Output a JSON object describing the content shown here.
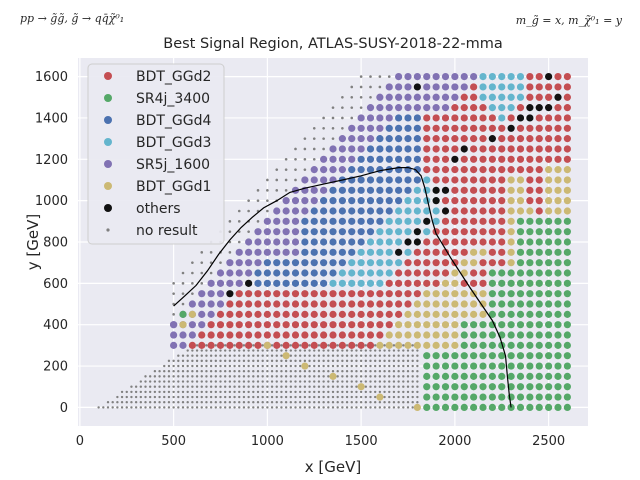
{
  "corner_left": "pp → g̃g̃, g̃ → qq̄χ̃⁰₁",
  "corner_right": "m_g̃ = x, m_χ̃⁰₁ = y",
  "chart_data": {
    "type": "scatter",
    "title": "Best Signal Region, ATLAS-SUSY-2018-22-mma",
    "xlabel": "x [GeV]",
    "ylabel": "y [GeV]",
    "xlim": [
      -10,
      2710
    ],
    "ylim": [
      -90,
      1690
    ],
    "xticks": [
      0,
      500,
      1000,
      1500,
      2000,
      2500
    ],
    "yticks": [
      0,
      200,
      400,
      600,
      800,
      1000,
      1200,
      1400,
      1600
    ],
    "grid": true,
    "legend_position": "top-left",
    "grid_rule": {
      "x_range": [
        500,
        2600
      ],
      "x_step": 50,
      "y_range": [
        0,
        1600
      ],
      "y_step": 50,
      "allowed_region": "y <= x - 100",
      "no_result_region": "x from 100 to 1800 with y from 0 to 300 (spacing 25)"
    },
    "exclusion_contour": [
      [
        500,
        490
      ],
      [
        560,
        540
      ],
      [
        620,
        590
      ],
      [
        680,
        660
      ],
      [
        740,
        740
      ],
      [
        800,
        810
      ],
      [
        860,
        870
      ],
      [
        920,
        920
      ],
      [
        980,
        965
      ],
      [
        1050,
        1000
      ],
      [
        1120,
        1040
      ],
      [
        1200,
        1060
      ],
      [
        1300,
        1080
      ],
      [
        1400,
        1100
      ],
      [
        1500,
        1120
      ],
      [
        1600,
        1145
      ],
      [
        1700,
        1160
      ],
      [
        1750,
        1160
      ],
      [
        1790,
        1150
      ],
      [
        1820,
        1120
      ],
      [
        1840,
        1060
      ],
      [
        1860,
        980
      ],
      [
        1880,
        900
      ],
      [
        1900,
        840
      ],
      [
        1940,
        780
      ],
      [
        1980,
        720
      ],
      [
        2030,
        650
      ],
      [
        2080,
        580
      ],
      [
        2140,
        500
      ],
      [
        2200,
        420
      ],
      [
        2240,
        340
      ],
      [
        2270,
        250
      ],
      [
        2280,
        150
      ],
      [
        2290,
        60
      ],
      [
        2300,
        0
      ]
    ],
    "series": [
      {
        "name": "BDT_GGd2",
        "color": "#c44e52",
        "marker": "large"
      },
      {
        "name": "SR4j_3400",
        "color": "#55a868",
        "marker": "large"
      },
      {
        "name": "BDT_GGd4",
        "color": "#4c72b0",
        "marker": "large"
      },
      {
        "name": "BDT_GGd3",
        "color": "#64b5cd",
        "marker": "large"
      },
      {
        "name": "SR5j_1600",
        "color": "#8172b3",
        "marker": "large"
      },
      {
        "name": "BDT_GGd1",
        "color": "#ccb974",
        "marker": "large"
      },
      {
        "name": "others",
        "color": "#111111",
        "marker": "large"
      },
      {
        "name": "no result",
        "color": "#808080",
        "marker": "small"
      }
    ]
  }
}
